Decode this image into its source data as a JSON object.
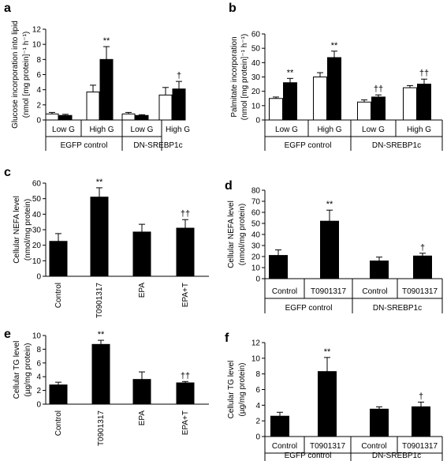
{
  "chart_data": [
    {
      "panel": "a",
      "type": "bar",
      "ylabel_lines": [
        "Glucose incorporation into lipid",
        "(nmol [mg protein]⁻¹ h⁻¹)"
      ],
      "ylim": [
        0,
        12
      ],
      "yticks": [
        0,
        2,
        4,
        6,
        8,
        10,
        12
      ],
      "grid": false,
      "categories": [
        "Low G",
        "High G",
        "Low G",
        "High G"
      ],
      "groups": [
        "EGFP control",
        "DN-SREBP1c"
      ],
      "series": [
        {
          "fill": "#ffffff",
          "values": [
            0.8,
            3.7,
            0.8,
            3.3
          ],
          "errors": [
            0.2,
            0.9,
            0.2,
            1.0
          ],
          "marks": [
            "",
            "",
            "",
            ""
          ]
        },
        {
          "fill": "#000000",
          "values": [
            0.6,
            8.0,
            0.6,
            4.1
          ],
          "errors": [
            0.15,
            1.7,
            0.1,
            1.0
          ],
          "marks": [
            "",
            "**",
            "",
            "†"
          ]
        }
      ]
    },
    {
      "panel": "b",
      "type": "bar",
      "ylabel_lines": [
        "Palmitate incorporation",
        "(nmol [mg protein]⁻¹ h⁻¹)"
      ],
      "ylim": [
        0,
        60
      ],
      "yticks": [
        0,
        10,
        20,
        30,
        40,
        50,
        60
      ],
      "grid": false,
      "categories": [
        "Low G",
        "High G",
        "Low G",
        "High G"
      ],
      "groups": [
        "EGFP control",
        "DN-SREBP1c"
      ],
      "series": [
        {
          "fill": "#ffffff",
          "values": [
            15,
            30,
            12.5,
            22.5
          ],
          "errors": [
            1,
            3,
            1.5,
            1.5
          ],
          "marks": [
            "",
            "",
            "",
            ""
          ]
        },
        {
          "fill": "#000000",
          "values": [
            26,
            43.5,
            16,
            25
          ],
          "errors": [
            3,
            4.5,
            1.5,
            3.5
          ],
          "marks": [
            "**",
            "**",
            "††",
            "††"
          ]
        }
      ]
    },
    {
      "panel": "c",
      "type": "bar",
      "ylabel_lines": [
        "Cellular NEFA level",
        "(nmol/mg protein)"
      ],
      "ylim": [
        0,
        60
      ],
      "yticks": [
        0,
        10,
        20,
        30,
        40,
        50,
        60
      ],
      "grid": false,
      "categories": [
        "Control",
        "T0901317",
        "EPA",
        "EPA+T"
      ],
      "groups": [],
      "series": [
        {
          "fill": "#000000",
          "values": [
            22.5,
            51,
            28.5,
            31
          ],
          "errors": [
            5,
            6,
            5,
            5.5
          ],
          "marks": [
            "",
            "**",
            "",
            "††"
          ]
        }
      ]
    },
    {
      "panel": "d",
      "type": "bar",
      "ylabel_lines": [
        "Cellular NEFA level",
        "(nmol/mg protein)"
      ],
      "ylim": [
        0,
        80
      ],
      "yticks": [
        0,
        10,
        20,
        30,
        40,
        50,
        60,
        70,
        80
      ],
      "grid": false,
      "categories": [
        "Control",
        "T0901317",
        "Control",
        "T0901317"
      ],
      "groups": [
        "EGFP control",
        "DN-SREBP1c"
      ],
      "series": [
        {
          "fill": "#000000",
          "values": [
            21,
            52,
            16,
            20.5
          ],
          "errors": [
            5,
            10,
            3.5,
            2.5
          ],
          "marks": [
            "",
            "**",
            "",
            "†"
          ]
        }
      ]
    },
    {
      "panel": "e",
      "type": "bar",
      "ylabel_lines": [
        "Cellular TG level",
        "(µg/mg protein)"
      ],
      "ylim": [
        0,
        10
      ],
      "yticks": [
        0,
        2,
        4,
        6,
        8,
        10
      ],
      "grid": false,
      "categories": [
        "Control",
        "T0901317",
        "EPA",
        "EPA+T"
      ],
      "groups": [],
      "series": [
        {
          "fill": "#000000",
          "values": [
            2.8,
            8.7,
            3.6,
            3.1
          ],
          "errors": [
            0.4,
            0.6,
            1.1,
            0.2
          ],
          "marks": [
            "",
            "**",
            "",
            "††"
          ]
        }
      ]
    },
    {
      "panel": "f",
      "type": "bar",
      "ylabel_lines": [
        "Cellular TG level",
        "(µg/mg protein)"
      ],
      "ylim": [
        0,
        12
      ],
      "yticks": [
        0,
        2,
        4,
        6,
        8,
        10,
        12
      ],
      "grid": false,
      "categories": [
        "Control",
        "T0901317",
        "Control",
        "T0901317"
      ],
      "groups": [
        "EGFP control",
        "DN-SREBP1c"
      ],
      "series": [
        {
          "fill": "#000000",
          "values": [
            2.6,
            8.3,
            3.5,
            3.8
          ],
          "errors": [
            0.5,
            1.8,
            0.3,
            0.6
          ],
          "marks": [
            "",
            "**",
            "",
            "†"
          ]
        }
      ]
    }
  ]
}
